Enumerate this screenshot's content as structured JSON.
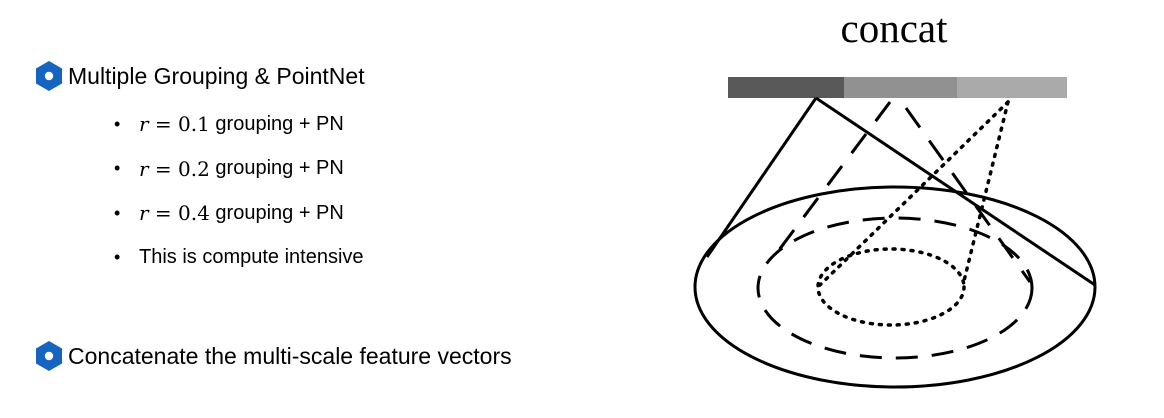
{
  "headings": [
    {
      "text": "Multiple Grouping & PointNet",
      "icon": "hexagon-bullet-icon"
    },
    {
      "text": "Concatenate the multi-scale feature vectors",
      "icon": "hexagon-bullet-icon"
    }
  ],
  "bullets": [
    {
      "var": "r",
      "eq": "=",
      "value": "0.1",
      "suffix": " grouping + PN"
    },
    {
      "var": "r",
      "eq": "=",
      "value": "0.2",
      "suffix": " grouping + PN"
    },
    {
      "var": "r",
      "eq": "=",
      "value": "0.4",
      "suffix": " grouping + PN"
    },
    {
      "text": "This is compute intensive"
    }
  ],
  "diagram": {
    "title": "concat",
    "bar_segments": [
      {
        "color": "#595959"
      },
      {
        "color": "#919191"
      },
      {
        "color": "#aaaaaa"
      }
    ],
    "colors": {
      "icon": "#1565c0",
      "stroke": "#000000"
    }
  }
}
